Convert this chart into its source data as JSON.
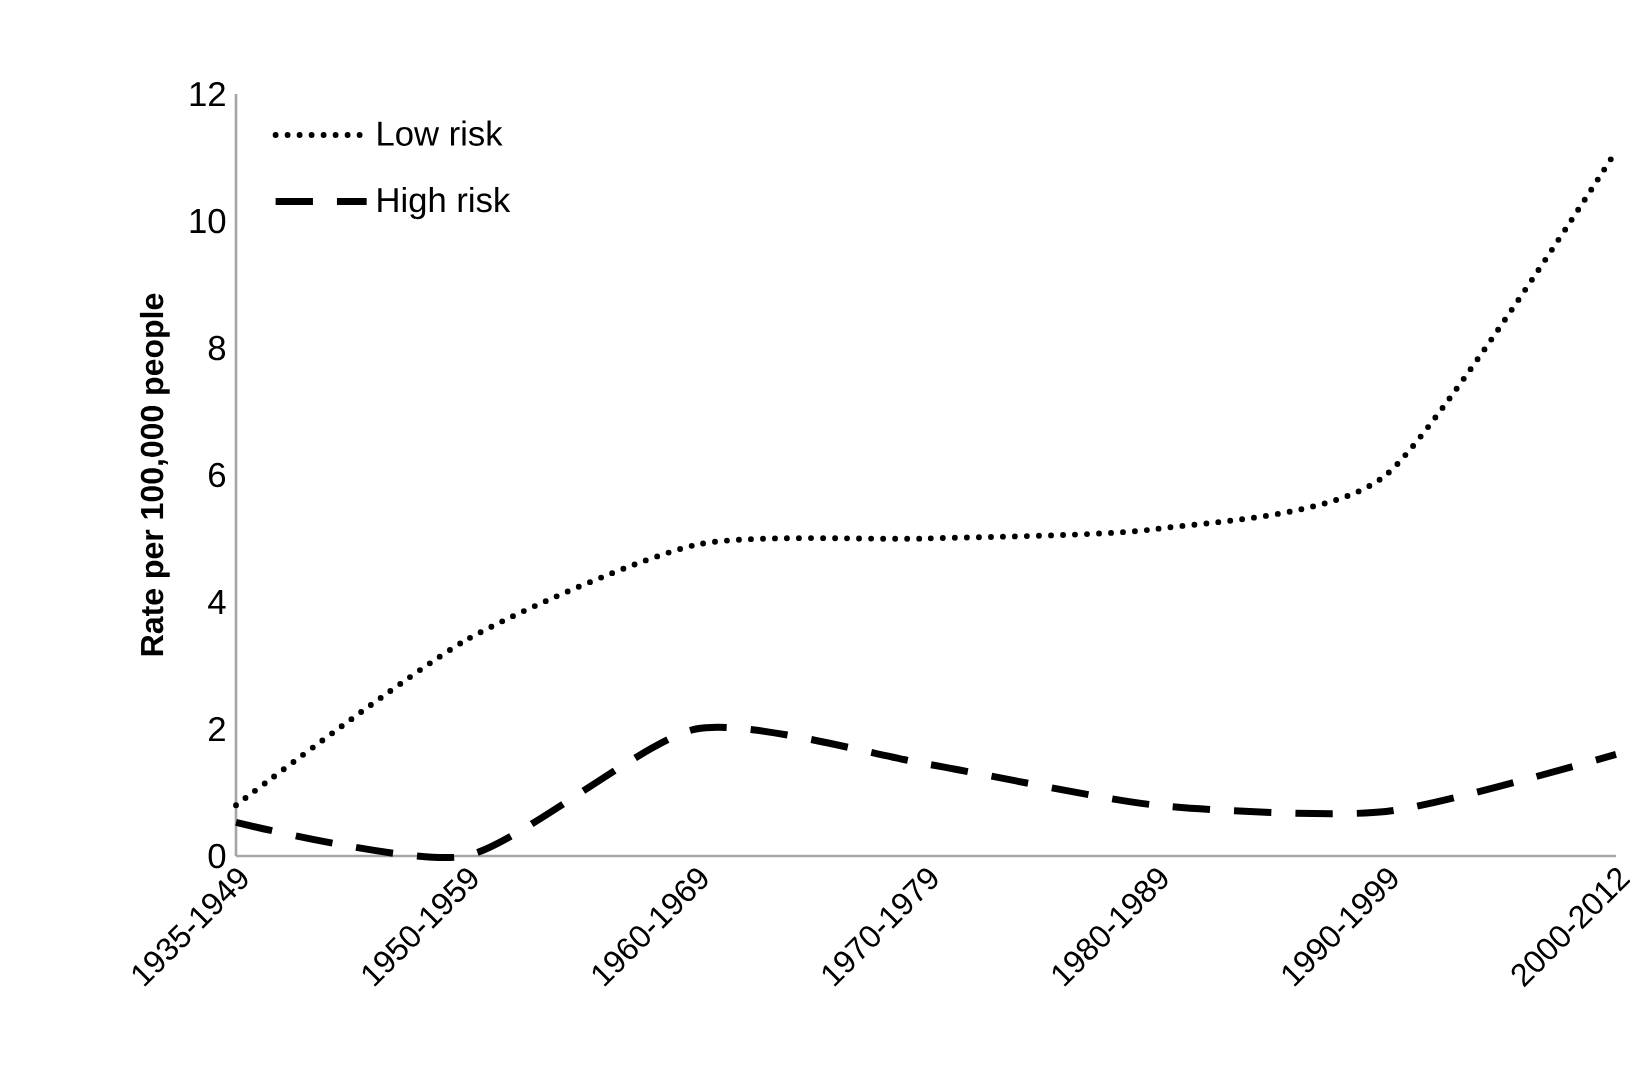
{
  "chart_data": {
    "type": "line",
    "ylabel": "Rate per 100,000 people",
    "categories": [
      "1935-1949",
      "1950-1959",
      "1960-1969",
      "1970-1979",
      "1980-1989",
      "1990-1999",
      "2000-2012"
    ],
    "series": [
      {
        "name": "Low risk",
        "color": "#000000",
        "line_style": "dotted",
        "values": [
          0.8,
          3.4,
          4.9,
          5.0,
          5.15,
          6.0,
          11.1
        ]
      },
      {
        "name": "High risk",
        "color": "#000000",
        "line_style": "dashed",
        "values": [
          0.53,
          0.0,
          2.0,
          1.45,
          0.8,
          0.7,
          1.6
        ]
      }
    ],
    "ylim": [
      0,
      12
    ],
    "yticks": [
      0,
      2,
      4,
      6,
      8,
      10,
      12
    ],
    "grid": false,
    "legend": "top left",
    "marker": "none"
  }
}
